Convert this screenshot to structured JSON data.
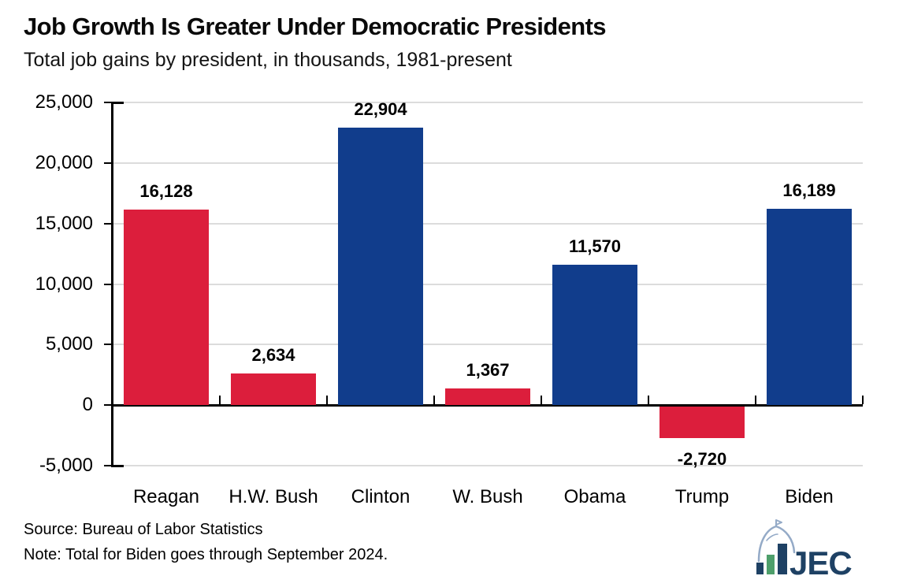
{
  "header": {
    "title": "Job Growth Is Greater Under Democratic Presidents",
    "subtitle": "Total job gains by president, in thousands, 1981-present"
  },
  "chart_data": {
    "type": "bar",
    "title": "Job Growth Is Greater Under Democratic Presidents",
    "subtitle": "Total job gains by president, in thousands, 1981-present",
    "categories": [
      "Reagan",
      "H.W. Bush",
      "Clinton",
      "W. Bush",
      "Obama",
      "Trump",
      "Biden"
    ],
    "values": [
      16128,
      2634,
      22904,
      1367,
      11570,
      -2720,
      16189
    ],
    "value_labels": [
      "16,128",
      "2,634",
      "22,904",
      "1,367",
      "11,570",
      "-2,720",
      "16,189"
    ],
    "bar_colors": [
      "#DC1E3C",
      "#DC1E3C",
      "#113D8C",
      "#DC1E3C",
      "#113D8C",
      "#DC1E3C",
      "#113D8C"
    ],
    "party_colors": {
      "republican": "#DC1E3C",
      "democrat": "#113D8C"
    },
    "xlabel": "",
    "ylabel": "",
    "ylim": [
      -5000,
      25000
    ],
    "ytick_step": 5000,
    "yticks": [
      25000,
      20000,
      15000,
      10000,
      5000,
      0,
      -5000
    ],
    "ytick_labels": [
      "25,000",
      "20,000",
      "15,000",
      "10,000",
      "5,000",
      "0",
      "-5,000"
    ],
    "grid": true,
    "legend": false
  },
  "footer": {
    "source": "Source: Bureau of Labor Statistics",
    "note": "Note: Total for Biden goes through September 2024.",
    "logo_text": "JEC"
  },
  "colors": {
    "republican_red": "#DC1E3C",
    "democrat_blue": "#113D8C",
    "gridline": "#DCDCDC",
    "axis": "#000000",
    "logo_navy": "#1E4164",
    "logo_green": "#4E9F6B",
    "logo_dome": "#94AAC7"
  }
}
